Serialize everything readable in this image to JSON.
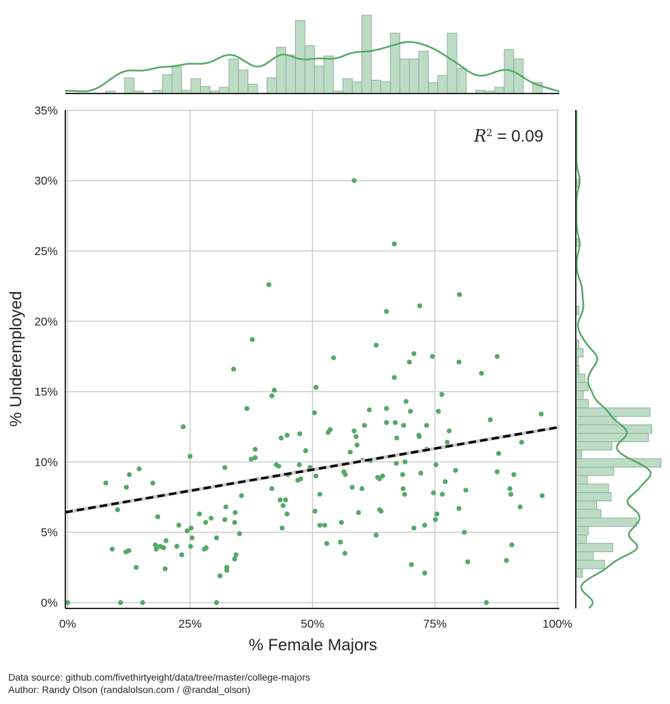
{
  "chart_data": {
    "type": "scatter",
    "xlabel": "% Female Majors",
    "ylabel": "% Underemployed",
    "xlim": [
      -0.5,
      100.4
    ],
    "ylim": [
      -0.4,
      35
    ],
    "x_ticks": [
      "0%",
      "25%",
      "50%",
      "75%",
      "100%"
    ],
    "x_tick_values": [
      0,
      25,
      50,
      75,
      100
    ],
    "y_ticks": [
      "0%",
      "5%",
      "10%",
      "15%",
      "20%",
      "25%",
      "30%",
      "35%"
    ],
    "y_tick_values": [
      0,
      5,
      10,
      15,
      20,
      25,
      30,
      35
    ],
    "grid": true,
    "annotation": {
      "r2_label": "R",
      "r2_sup": "2",
      "r2_text": " = 0.09",
      "r2": 0.09
    },
    "regression": {
      "intercept": 6.45,
      "slope": 0.06,
      "style": "dashed"
    },
    "colors": {
      "points": "#55a868",
      "hist_fill": "#bddcc5",
      "hist_edge": "#8fae98",
      "grid": "#cccccc",
      "line": "#000000"
    },
    "points": [
      [
        0.0,
        0.0
      ],
      [
        10.8,
        0.0
      ],
      [
        15.3,
        0.0
      ],
      [
        30.4,
        0.0
      ],
      [
        85.5,
        0.0
      ],
      [
        33.9,
        16.6
      ],
      [
        42.2,
        15.1
      ],
      [
        41.7,
        14.7
      ],
      [
        36.6,
        13.8
      ],
      [
        23.6,
        12.5
      ],
      [
        43.6,
        11.7
      ],
      [
        44.8,
        11.9
      ],
      [
        47.4,
        12.0
      ],
      [
        38.3,
        10.9
      ],
      [
        48.6,
        10.8
      ],
      [
        37.5,
        10.2
      ],
      [
        38.3,
        10.3
      ],
      [
        25.0,
        10.4
      ],
      [
        32.1,
        9.6
      ],
      [
        14.6,
        9.5
      ],
      [
        12.6,
        9.1
      ],
      [
        7.8,
        8.5
      ],
      [
        12.0,
        8.2
      ],
      [
        17.4,
        8.5
      ],
      [
        42.6,
        9.8
      ],
      [
        43.1,
        9.7
      ],
      [
        47.3,
        9.8
      ],
      [
        49.5,
        9.6
      ],
      [
        45.0,
        9.1
      ],
      [
        47.0,
        8.7
      ],
      [
        47.6,
        8.8
      ],
      [
        41.7,
        8.1
      ],
      [
        35.5,
        7.6
      ],
      [
        10.2,
        6.6
      ],
      [
        43.4,
        7.3
      ],
      [
        44.5,
        7.3
      ],
      [
        44.0,
        6.9
      ],
      [
        44.8,
        6.3
      ],
      [
        32.3,
        6.8
      ],
      [
        34.2,
        6.4
      ],
      [
        18.4,
        6.1
      ],
      [
        26.9,
        6.3
      ],
      [
        29.3,
        6.0
      ],
      [
        28.2,
        5.7
      ],
      [
        32.1,
        5.9
      ],
      [
        34.1,
        5.7
      ],
      [
        22.7,
        5.5
      ],
      [
        24.4,
        5.1
      ],
      [
        25.2,
        5.3
      ],
      [
        43.8,
        5.3
      ],
      [
        35.1,
        4.9
      ],
      [
        30.4,
        4.6
      ],
      [
        25.4,
        4.6
      ],
      [
        20.1,
        4.4
      ],
      [
        17.9,
        4.1
      ],
      [
        18.1,
        3.8
      ],
      [
        18.9,
        4.0
      ],
      [
        19.6,
        3.9
      ],
      [
        22.3,
        4.0
      ],
      [
        25.1,
        4.0
      ],
      [
        23.3,
        3.4
      ],
      [
        9.1,
        3.8
      ],
      [
        11.9,
        3.6
      ],
      [
        12.5,
        3.7
      ],
      [
        27.9,
        3.8
      ],
      [
        28.3,
        3.9
      ],
      [
        34.4,
        3.4
      ],
      [
        34.1,
        3.1
      ],
      [
        14.0,
        2.5
      ],
      [
        19.9,
        2.4
      ],
      [
        32.5,
        2.5
      ],
      [
        32.5,
        2.3
      ],
      [
        31.1,
        1.9
      ],
      [
        63.0,
        18.3
      ],
      [
        54.3,
        17.4
      ],
      [
        70.7,
        17.7
      ],
      [
        69.8,
        17.1
      ],
      [
        74.5,
        17.5
      ],
      [
        79.9,
        17.1
      ],
      [
        87.7,
        17.5
      ],
      [
        84.5,
        16.3
      ],
      [
        66.7,
        16.0
      ],
      [
        50.7,
        15.3
      ],
      [
        76.4,
        14.8
      ],
      [
        69.1,
        14.3
      ],
      [
        61.6,
        13.7
      ],
      [
        65.1,
        13.8
      ],
      [
        70.0,
        13.6
      ],
      [
        75.7,
        13.6
      ],
      [
        50.4,
        13.5
      ],
      [
        96.7,
        13.4
      ],
      [
        65.1,
        12.8
      ],
      [
        66.9,
        12.8
      ],
      [
        68.6,
        12.6
      ],
      [
        60.6,
        12.6
      ],
      [
        86.3,
        13.0
      ],
      [
        73.3,
        12.6
      ],
      [
        53.2,
        12.1
      ],
      [
        53.6,
        12.3
      ],
      [
        58.5,
        12.2
      ],
      [
        58.9,
        11.8
      ],
      [
        59.1,
        11.2
      ],
      [
        67.2,
        11.7
      ],
      [
        71.7,
        11.9
      ],
      [
        71.8,
        11.8
      ],
      [
        77.9,
        12.2
      ],
      [
        77.5,
        11.4
      ],
      [
        92.7,
        11.4
      ],
      [
        73.3,
        10.9
      ],
      [
        57.7,
        10.7
      ],
      [
        88.0,
        10.6
      ],
      [
        60.2,
        10.1
      ],
      [
        61.8,
        10.1
      ],
      [
        67.1,
        9.9
      ],
      [
        68.9,
        10.0
      ],
      [
        75.2,
        9.8
      ],
      [
        50.7,
        9.0
      ],
      [
        56.4,
        9.3
      ],
      [
        56.7,
        9.1
      ],
      [
        63.3,
        8.9
      ],
      [
        63.7,
        8.8
      ],
      [
        64.3,
        9.0
      ],
      [
        68.4,
        9.1
      ],
      [
        72.1,
        9.2
      ],
      [
        79.2,
        9.4
      ],
      [
        87.7,
        9.3
      ],
      [
        91.1,
        9.1
      ],
      [
        77.1,
        8.6
      ],
      [
        51.5,
        7.7
      ],
      [
        58.1,
        8.2
      ],
      [
        60.1,
        8.1
      ],
      [
        68.5,
        8.1
      ],
      [
        68.8,
        7.7
      ],
      [
        74.7,
        7.8
      ],
      [
        76.5,
        7.7
      ],
      [
        81.3,
        8.0
      ],
      [
        90.3,
        8.1
      ],
      [
        90.5,
        7.7
      ],
      [
        96.9,
        7.6
      ],
      [
        50.5,
        6.5
      ],
      [
        59.4,
        6.4
      ],
      [
        63.7,
        6.6
      ],
      [
        64.0,
        6.5
      ],
      [
        79.9,
        6.7
      ],
      [
        92.4,
        6.8
      ],
      [
        75.4,
        6.3
      ],
      [
        75.1,
        5.9
      ],
      [
        51.5,
        5.5
      ],
      [
        52.5,
        5.5
      ],
      [
        55.9,
        5.7
      ],
      [
        63.0,
        4.8
      ],
      [
        70.7,
        5.3
      ],
      [
        72.9,
        5.5
      ],
      [
        81.0,
        5.0
      ],
      [
        90.7,
        4.1
      ],
      [
        52.9,
        4.2
      ],
      [
        55.7,
        4.3
      ],
      [
        56.6,
        3.5
      ],
      [
        70.2,
        2.7
      ],
      [
        72.9,
        2.1
      ],
      [
        81.7,
        2.9
      ],
      [
        89.6,
        3.0
      ],
      [
        58.5,
        30.0
      ],
      [
        66.7,
        25.5
      ],
      [
        41.1,
        22.6
      ],
      [
        65.1,
        20.7
      ],
      [
        71.9,
        21.1
      ],
      [
        80.0,
        21.9
      ],
      [
        37.7,
        18.7
      ]
    ],
    "top_histogram": {
      "range": [
        0,
        96.9
      ],
      "relative_density": [
        0,
        0,
        0,
        0,
        0.03,
        0,
        0.2,
        0.03,
        0,
        0.04,
        0.24,
        0.34,
        0.04,
        0.19,
        0.09,
        0.03,
        0.08,
        0.44,
        0.3,
        0.12,
        0,
        0.2,
        0.59,
        0.49,
        0.93,
        0.61,
        0.35,
        0.48,
        0.03,
        0.19,
        0.15,
        1.0,
        0.17,
        0.15,
        0.77,
        0.44,
        0.44,
        0.54,
        0.14,
        0.23,
        0.77,
        0.32,
        0,
        0.04,
        0.03,
        0.08,
        0.56,
        0.44,
        0,
        0.14
      ],
      "kde": true
    },
    "right_histogram": {
      "range": [
        0,
        30.1
      ],
      "relative_density": [
        0,
        0,
        0,
        0.07,
        0.33,
        0.2,
        0.43,
        0.12,
        0.14,
        0.71,
        0.29,
        0.24,
        0.41,
        0.38,
        0.13,
        0.44,
        1.0,
        0.06,
        0.42,
        0.85,
        0.89,
        0.47,
        0.87,
        0.14,
        0.08,
        0.14,
        0.1,
        0.03,
        0.02,
        0.08,
        0.03,
        0,
        0,
        0,
        0.03,
        0,
        0,
        0,
        0,
        0,
        0,
        0,
        0.03,
        0,
        0,
        0,
        0,
        0,
        0,
        0.03
      ],
      "kde": true
    }
  },
  "footer": {
    "line1": "Data source: github.com/fivethirtyeight/data/tree/master/college-majors",
    "line2": "Author: Randy Olson (randalolson.com / @randal_olson)"
  }
}
